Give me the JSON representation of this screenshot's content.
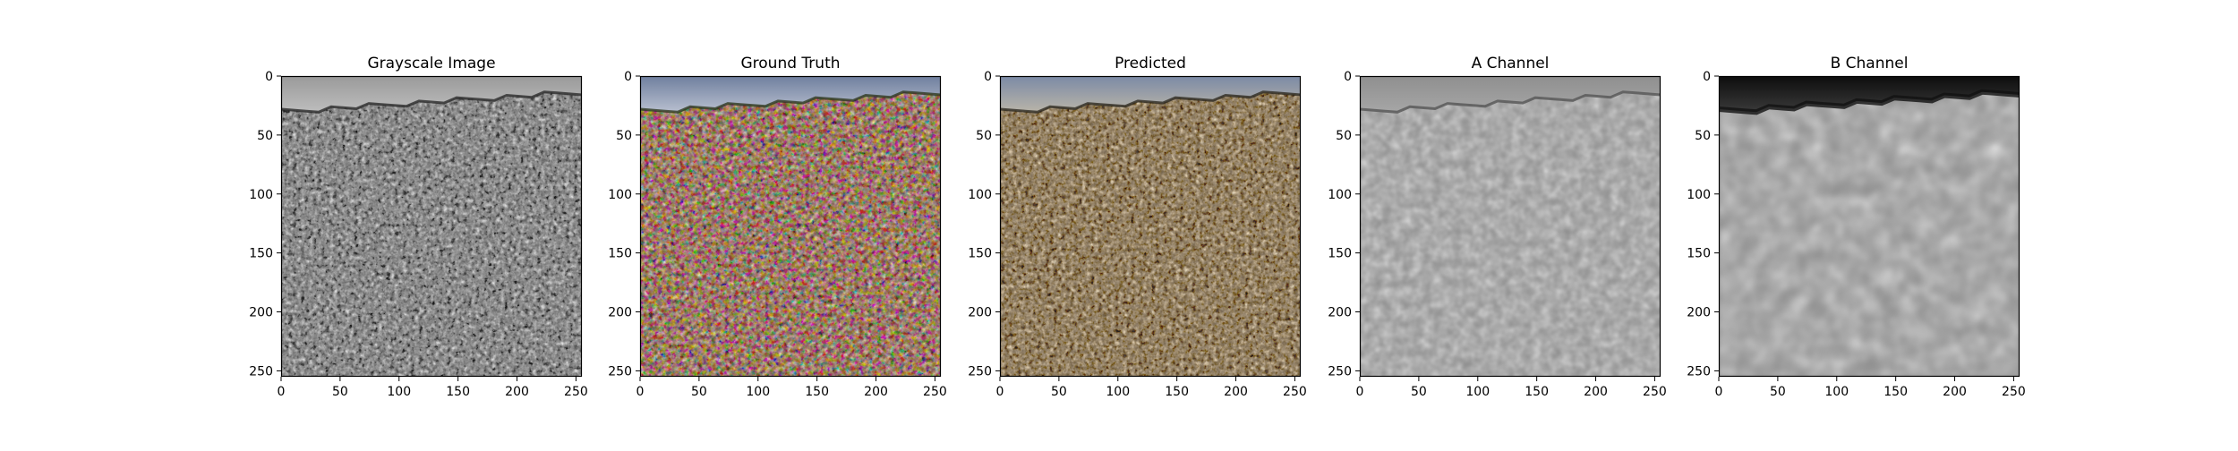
{
  "chart_data": [
    {
      "type": "image",
      "title": "Grayscale Image",
      "xlabel": "",
      "ylabel": "",
      "xlim": [
        0,
        255
      ],
      "ylim": [
        255,
        0
      ],
      "xticks": [
        0,
        50,
        100,
        150,
        200,
        250
      ],
      "yticks": [
        0,
        50,
        100,
        150,
        200,
        250
      ],
      "colormap": "grayscale"
    },
    {
      "type": "image",
      "title": "Ground Truth",
      "xlabel": "",
      "ylabel": "",
      "xlim": [
        0,
        255
      ],
      "ylim": [
        255,
        0
      ],
      "xticks": [
        0,
        50,
        100,
        150,
        200,
        250
      ],
      "yticks": [
        0,
        50,
        100,
        150,
        200,
        250
      ],
      "colormap": "color"
    },
    {
      "type": "image",
      "title": "Predicted",
      "xlabel": "",
      "ylabel": "",
      "xlim": [
        0,
        255
      ],
      "ylim": [
        255,
        0
      ],
      "xticks": [
        0,
        50,
        100,
        150,
        200,
        250
      ],
      "yticks": [
        0,
        50,
        100,
        150,
        200,
        250
      ],
      "colormap": "sepia"
    },
    {
      "type": "image",
      "title": "A Channel",
      "xlabel": "",
      "ylabel": "",
      "xlim": [
        0,
        255
      ],
      "ylim": [
        255,
        0
      ],
      "xticks": [
        0,
        50,
        100,
        150,
        200,
        250
      ],
      "yticks": [
        0,
        50,
        100,
        150,
        200,
        250
      ],
      "colormap": "gray-channel"
    },
    {
      "type": "image",
      "title": "B Channel",
      "xlabel": "",
      "ylabel": "",
      "xlim": [
        0,
        255
      ],
      "ylim": [
        255,
        0
      ],
      "xticks": [
        0,
        50,
        100,
        150,
        200,
        250
      ],
      "yticks": [
        0,
        50,
        100,
        150,
        200,
        250
      ],
      "colormap": "gray-channel-blur"
    }
  ],
  "colors": {
    "axis": "#000000",
    "background": "#ffffff"
  }
}
